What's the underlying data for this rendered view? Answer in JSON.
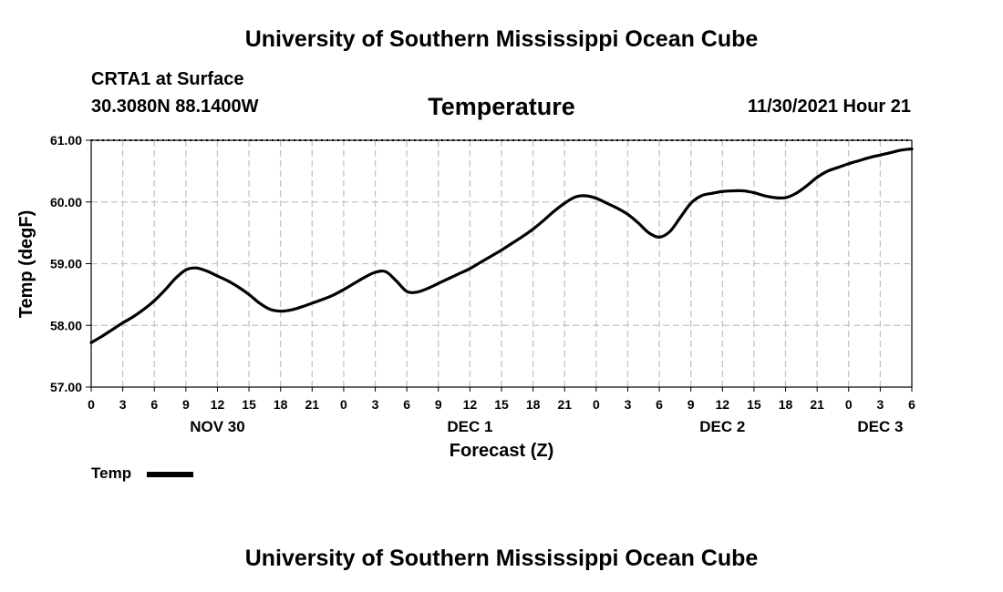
{
  "page": {
    "title_top": "University of Southern Mississippi Ocean Cube",
    "title_bottom": "University of Southern Mississippi Ocean Cube",
    "station": "CRTA1 at Surface",
    "location": "30.3080N  88.1400W",
    "datetime": "11/30/2021 Hour 21"
  },
  "chart_data": {
    "type": "line",
    "title": "Temperature",
    "xlabel": "Forecast (Z)",
    "ylabel": "Temp (degF)",
    "ylim": [
      57.0,
      61.0
    ],
    "xlim": [
      0,
      78
    ],
    "ytick_values": [
      57,
      58,
      59,
      60,
      61
    ],
    "ytick_labels": [
      "57.00",
      "58.00",
      "59.00",
      "60.00",
      "61.00"
    ],
    "xtick_values": [
      0,
      3,
      6,
      9,
      12,
      15,
      18,
      21,
      24,
      27,
      30,
      33,
      36,
      39,
      42,
      45,
      48,
      51,
      54,
      57,
      60,
      63,
      66,
      69,
      72,
      75,
      78
    ],
    "xtick_labels": [
      "0",
      "3",
      "6",
      "9",
      "12",
      "15",
      "18",
      "21",
      "0",
      "3",
      "6",
      "9",
      "12",
      "15",
      "18",
      "21",
      "0",
      "3",
      "6",
      "9",
      "12",
      "15",
      "18",
      "21",
      "0",
      "3",
      "6"
    ],
    "day_labels": [
      {
        "label": "NOV 30",
        "x": 12
      },
      {
        "label": "DEC 1",
        "x": 36
      },
      {
        "label": "DEC 2",
        "x": 60
      },
      {
        "label": "DEC 3",
        "x": 75
      }
    ],
    "grid": true,
    "legend": {
      "position": "bottom-left",
      "entries": [
        "Temp"
      ]
    },
    "series": [
      {
        "name": "Temp",
        "color": "#000000",
        "x": [
          0,
          1,
          2,
          3,
          4,
          5,
          6,
          7,
          8,
          9,
          10,
          11,
          12,
          13,
          14,
          15,
          16,
          17,
          18,
          19,
          20,
          21,
          22,
          23,
          24,
          25,
          26,
          27,
          28,
          29,
          30,
          31,
          32,
          33,
          34,
          35,
          36,
          37,
          38,
          39,
          40,
          41,
          42,
          43,
          44,
          45,
          46,
          47,
          48,
          49,
          50,
          51,
          52,
          53,
          54,
          55,
          56,
          57,
          58,
          59,
          60,
          61,
          62,
          63,
          64,
          65,
          66,
          67,
          68,
          69,
          70,
          71,
          72,
          73,
          74,
          75,
          76,
          77,
          78
        ],
        "values": [
          57.72,
          57.82,
          57.93,
          58.04,
          58.14,
          58.26,
          58.4,
          58.57,
          58.76,
          58.9,
          58.93,
          58.88,
          58.8,
          58.72,
          58.62,
          58.5,
          58.36,
          58.26,
          58.23,
          58.25,
          58.3,
          58.36,
          58.42,
          58.49,
          58.58,
          58.68,
          58.78,
          58.86,
          58.87,
          58.72,
          58.55,
          58.54,
          58.6,
          58.68,
          58.76,
          58.84,
          58.92,
          59.02,
          59.12,
          59.22,
          59.33,
          59.44,
          59.56,
          59.7,
          59.85,
          59.98,
          60.08,
          60.1,
          60.06,
          59.98,
          59.9,
          59.8,
          59.66,
          59.5,
          59.43,
          59.52,
          59.75,
          59.98,
          60.1,
          60.14,
          60.17,
          60.18,
          60.18,
          60.15,
          60.1,
          60.07,
          60.07,
          60.14,
          60.26,
          60.4,
          60.5,
          60.56,
          60.62,
          60.67,
          60.72,
          60.76,
          60.8,
          60.84,
          60.86
        ]
      }
    ]
  }
}
